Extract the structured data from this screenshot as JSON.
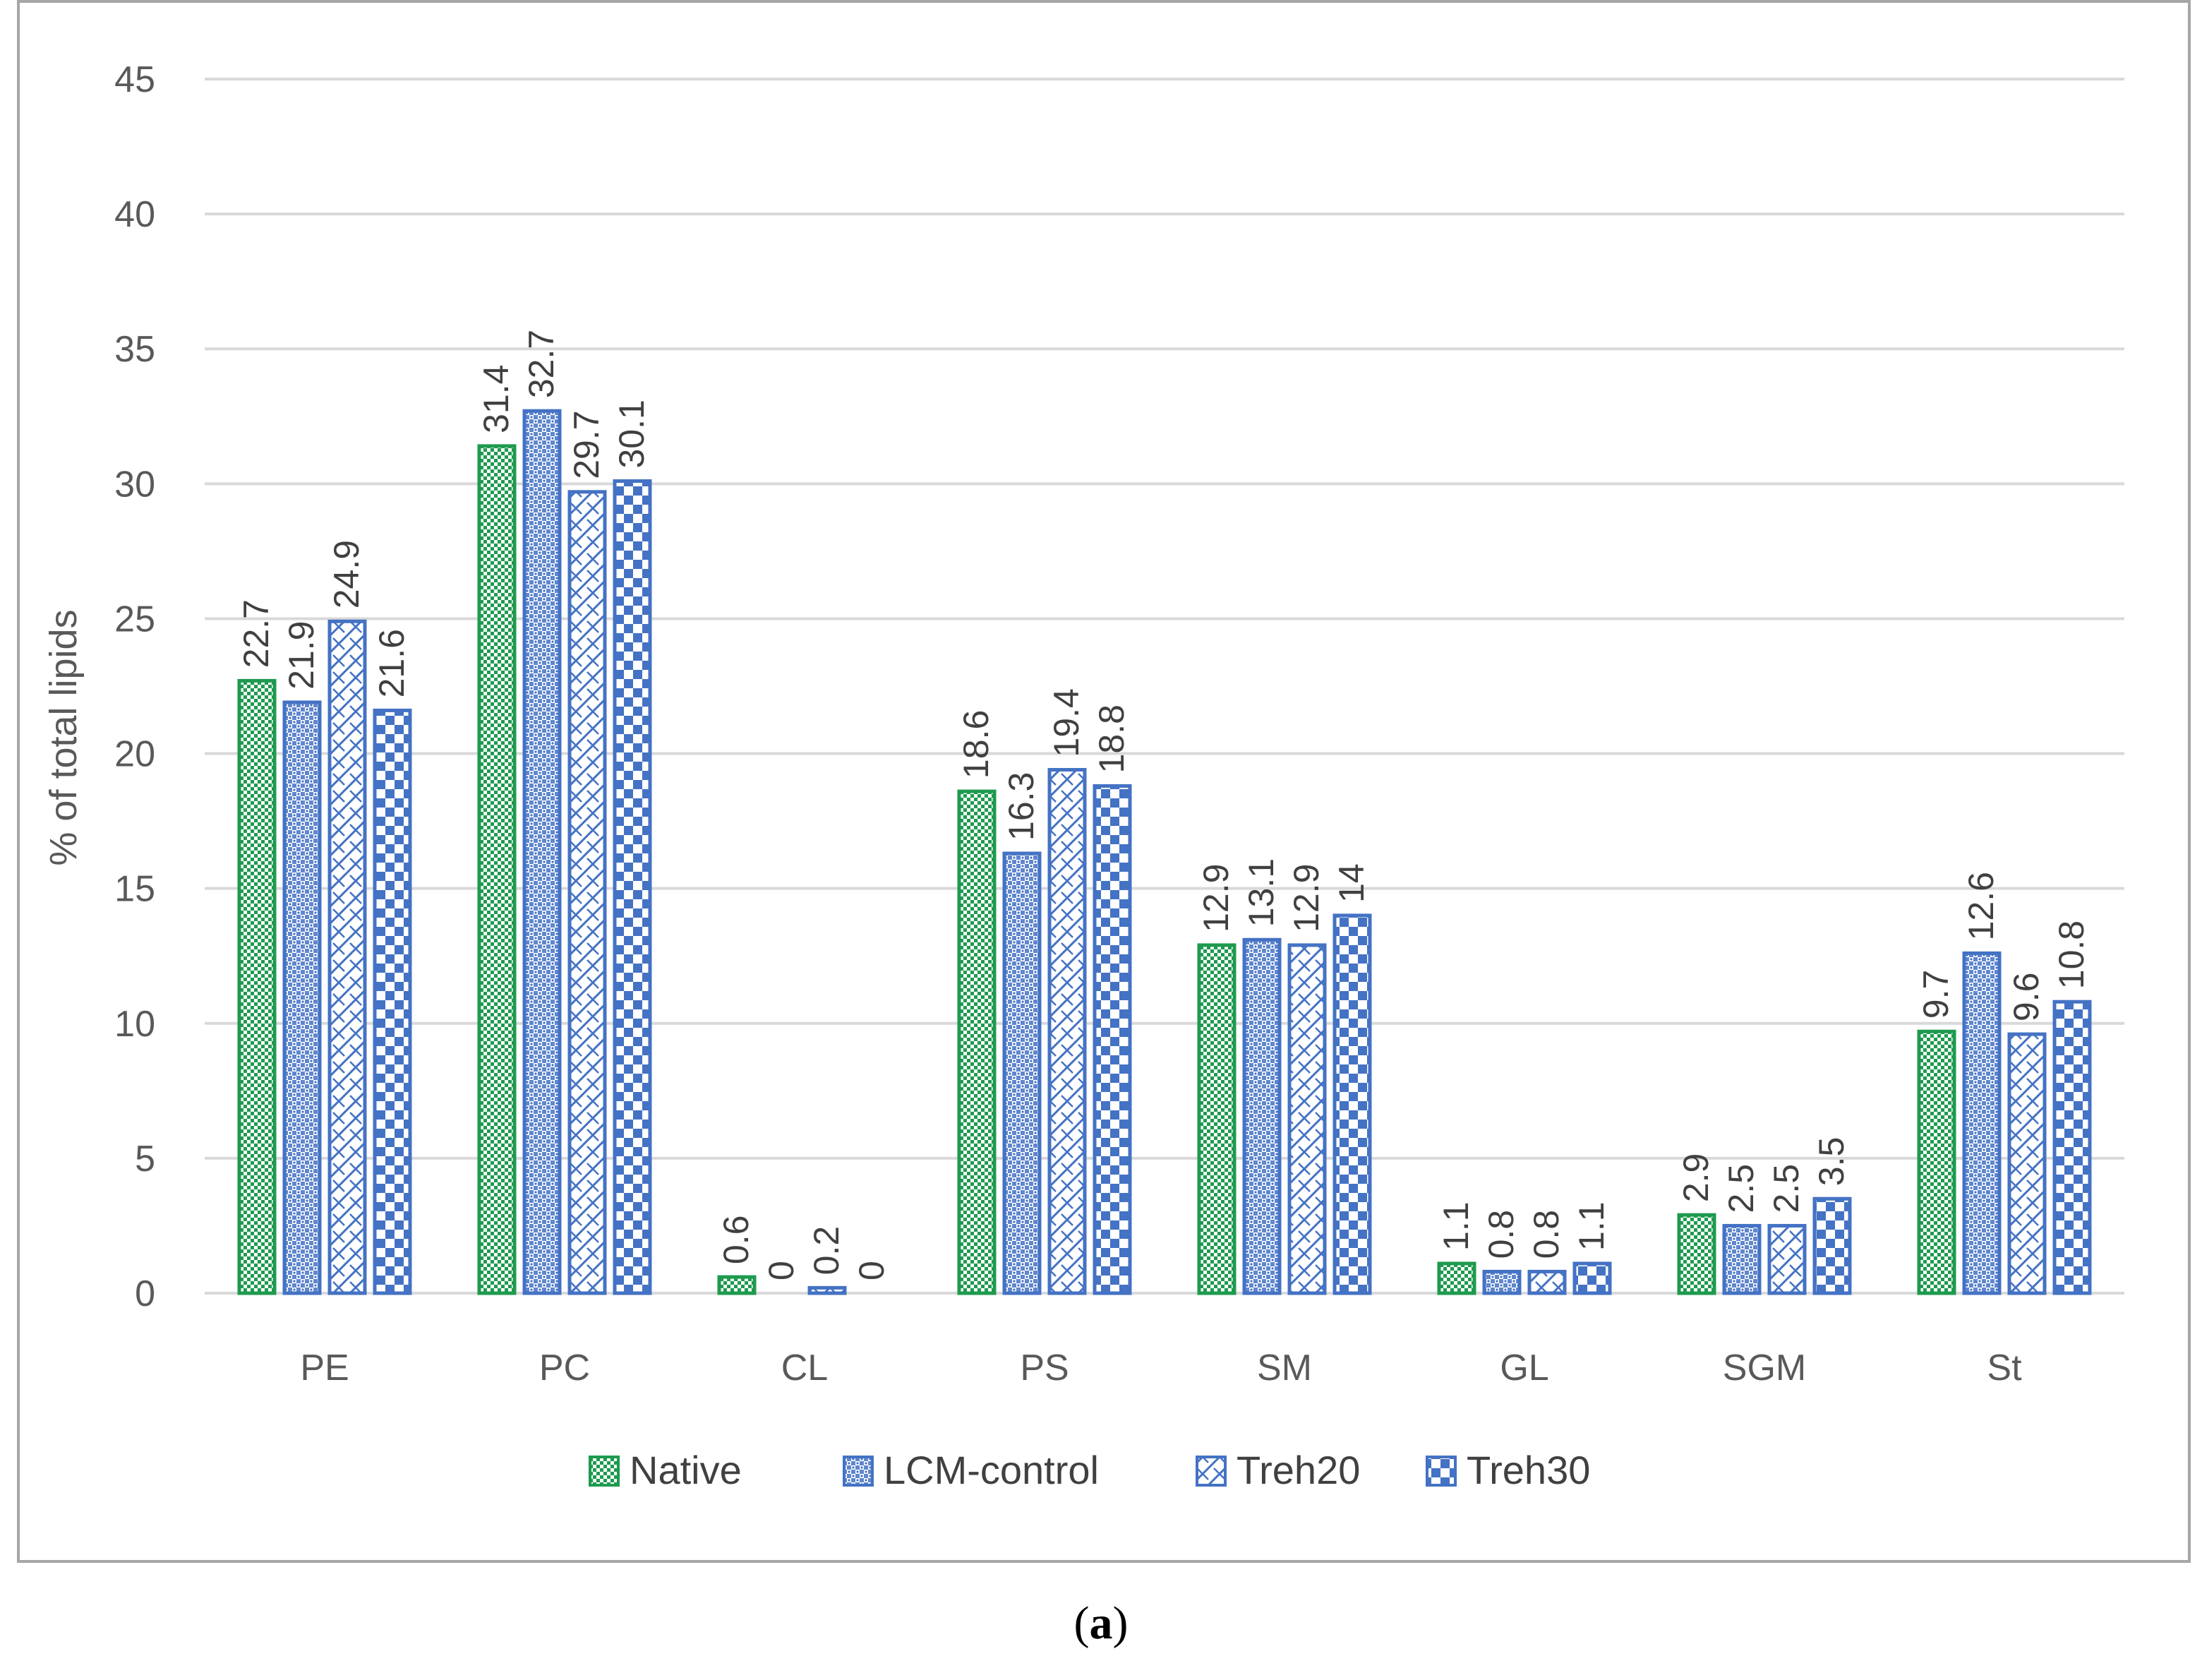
{
  "chart_data": {
    "type": "bar",
    "title": "",
    "xlabel": "",
    "ylabel": "% of total lipids",
    "ylim": [
      0,
      45
    ],
    "yticks": [
      0,
      5,
      10,
      15,
      20,
      25,
      30,
      35,
      40,
      45
    ],
    "grid": true,
    "legend_position": "bottom",
    "categories": [
      "PE",
      "PC",
      "CL",
      "PS",
      "SM",
      "GL",
      "SGM",
      "St"
    ],
    "series": [
      {
        "name": "Native",
        "values": [
          22.7,
          31.4,
          0.6,
          18.6,
          12.9,
          1.1,
          2.9,
          9.7
        ],
        "color": "#27ae60",
        "edge": "#1e9a4f",
        "pattern": "fine-check-green"
      },
      {
        "name": "LCM-control",
        "values": [
          21.9,
          32.7,
          0,
          16.3,
          13.1,
          0.8,
          2.5,
          12.6
        ],
        "color": "#4472c4",
        "edge": "#4472c4",
        "pattern": "dots-blue"
      },
      {
        "name": "Treh20",
        "values": [
          24.9,
          29.7,
          0.2,
          19.4,
          12.9,
          0.8,
          2.5,
          9.6
        ],
        "color": "#4472c4",
        "edge": "#4472c4",
        "pattern": "zigzag-blue"
      },
      {
        "name": "Treh30",
        "values": [
          21.6,
          30.1,
          0,
          18.8,
          14,
          1.1,
          3.5,
          10.8
        ],
        "color": "#4472c4",
        "edge": "#4472c4",
        "pattern": "large-check-blue"
      }
    ],
    "data_labels": [
      [
        "22.7",
        "31.4",
        "0.6",
        "18.6",
        "12.9",
        "1.1",
        "2.9",
        "9.7"
      ],
      [
        "21.9",
        "32.7",
        "0",
        "16.3",
        "13.1",
        "0.8",
        "2.5",
        "12.6"
      ],
      [
        "24.9",
        "29.7",
        "0.2",
        "19.4",
        "12.9",
        "0.8",
        "2.5",
        "9.6"
      ],
      [
        "21.6",
        "30.1",
        "0",
        "18.8",
        "14",
        "1.1",
        "3.5",
        "10.8"
      ]
    ]
  },
  "caption": {
    "open": "(",
    "letter": "a",
    "close": ")"
  },
  "colors": {
    "gridline": "#d9d9d9",
    "axis_text": "#595959",
    "label_text": "#404040",
    "frame": "#a6a6a6"
  }
}
